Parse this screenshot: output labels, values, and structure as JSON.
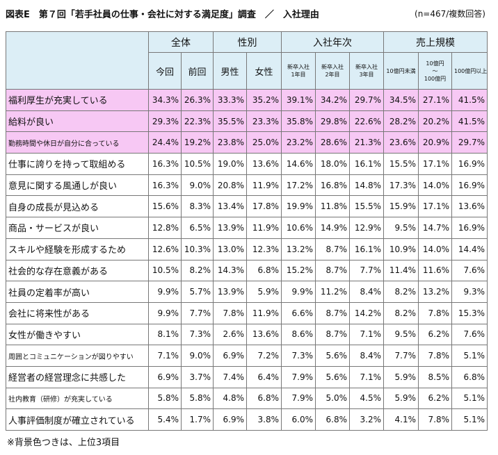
{
  "header": {
    "title": "図表E　第７回「若手社員の仕事・会社に対する満足度」調査　／　入社理由",
    "note": "(n=467/複数回答)"
  },
  "table": {
    "groups": [
      {
        "label": "全体",
        "columns": [
          [
            "今回"
          ],
          [
            "前回"
          ]
        ]
      },
      {
        "label": "性別",
        "columns": [
          [
            "男性"
          ],
          [
            "女性"
          ]
        ]
      },
      {
        "label": "入社年次",
        "columns": [
          [
            "新卒入社",
            "1年目"
          ],
          [
            "新卒入社",
            "2年目"
          ],
          [
            "新卒入社",
            "3年目"
          ]
        ]
      },
      {
        "label": "売上規模",
        "columns": [
          [
            "10億円未満"
          ],
          [
            "10億円",
            "～",
            "100億円"
          ],
          [
            "100億円以上"
          ]
        ]
      }
    ],
    "rows": [
      {
        "label": "福利厚生が充実している",
        "highlight": true,
        "values": [
          "34.3%",
          "26.3%",
          "33.3%",
          "35.2%",
          "39.1%",
          "34.2%",
          "29.7%",
          "34.5%",
          "27.1%",
          "41.5%"
        ]
      },
      {
        "label": "給料が良い",
        "highlight": true,
        "values": [
          "29.3%",
          "22.3%",
          "35.5%",
          "23.3%",
          "35.8%",
          "29.8%",
          "22.6%",
          "28.2%",
          "20.2%",
          "41.5%"
        ]
      },
      {
        "label": "勤務時間や休日が自分に合っている",
        "highlight": true,
        "values": [
          "24.4%",
          "19.2%",
          "23.8%",
          "25.0%",
          "23.2%",
          "28.6%",
          "21.3%",
          "23.6%",
          "20.9%",
          "29.7%"
        ]
      },
      {
        "label": "仕事に誇りを持って取組める",
        "highlight": false,
        "values": [
          "16.3%",
          "10.5%",
          "19.0%",
          "13.6%",
          "14.6%",
          "18.0%",
          "16.1%",
          "15.5%",
          "17.1%",
          "16.9%"
        ]
      },
      {
        "label": "意見に関する風通しが良い",
        "highlight": false,
        "values": [
          "16.3%",
          "9.0%",
          "20.8%",
          "11.9%",
          "17.2%",
          "16.8%",
          "14.8%",
          "17.3%",
          "14.0%",
          "16.9%"
        ]
      },
      {
        "label": "自身の成長が見込める",
        "highlight": false,
        "values": [
          "15.6%",
          "8.3%",
          "13.4%",
          "17.8%",
          "19.9%",
          "11.8%",
          "15.5%",
          "15.9%",
          "17.1%",
          "13.6%"
        ]
      },
      {
        "label": "商品・サービスが良い",
        "highlight": false,
        "values": [
          "12.8%",
          "6.5%",
          "13.9%",
          "11.9%",
          "10.6%",
          "14.9%",
          "12.9%",
          "9.5%",
          "14.7%",
          "16.9%"
        ]
      },
      {
        "label": "スキルや経験を形成するため",
        "highlight": false,
        "values": [
          "12.6%",
          "10.3%",
          "13.0%",
          "12.3%",
          "13.2%",
          "8.7%",
          "16.1%",
          "10.9%",
          "14.0%",
          "14.4%"
        ]
      },
      {
        "label": "社会的な存在意義がある",
        "highlight": false,
        "values": [
          "10.5%",
          "8.2%",
          "14.3%",
          "6.8%",
          "15.2%",
          "8.7%",
          "7.7%",
          "11.4%",
          "11.6%",
          "7.6%"
        ]
      },
      {
        "label": "社員の定着率が高い",
        "highlight": false,
        "values": [
          "9.9%",
          "5.7%",
          "13.9%",
          "5.9%",
          "9.9%",
          "11.2%",
          "8.4%",
          "8.2%",
          "13.2%",
          "9.3%"
        ]
      },
      {
        "label": "会社に将来性がある",
        "highlight": false,
        "values": [
          "9.9%",
          "7.7%",
          "7.8%",
          "11.9%",
          "6.6%",
          "8.7%",
          "14.2%",
          "8.2%",
          "7.8%",
          "15.3%"
        ]
      },
      {
        "label": "女性が働きやすい",
        "highlight": false,
        "values": [
          "8.1%",
          "7.3%",
          "2.6%",
          "13.6%",
          "8.6%",
          "8.7%",
          "7.1%",
          "9.5%",
          "6.2%",
          "7.6%"
        ]
      },
      {
        "label": "周囲とコミュニケーションが図りやすい",
        "highlight": false,
        "values": [
          "7.1%",
          "9.0%",
          "6.9%",
          "7.2%",
          "7.3%",
          "5.6%",
          "8.4%",
          "7.7%",
          "7.8%",
          "5.1%"
        ]
      },
      {
        "label": "経営者の経営理念に共感した",
        "highlight": false,
        "values": [
          "6.9%",
          "3.7%",
          "7.4%",
          "6.4%",
          "7.9%",
          "5.6%",
          "7.1%",
          "5.9%",
          "8.5%",
          "6.8%"
        ]
      },
      {
        "label": "社内教育（研修）が充実している",
        "highlight": false,
        "values": [
          "5.8%",
          "5.8%",
          "4.8%",
          "6.8%",
          "7.9%",
          "5.0%",
          "4.5%",
          "5.9%",
          "6.2%",
          "5.1%"
        ]
      },
      {
        "label": "人事評価制度が確立されている",
        "highlight": false,
        "values": [
          "5.4%",
          "1.7%",
          "6.9%",
          "3.8%",
          "6.0%",
          "6.8%",
          "3.2%",
          "4.1%",
          "7.8%",
          "5.1%"
        ]
      }
    ]
  },
  "footnote": "※背景色つきは、上位3項目"
}
